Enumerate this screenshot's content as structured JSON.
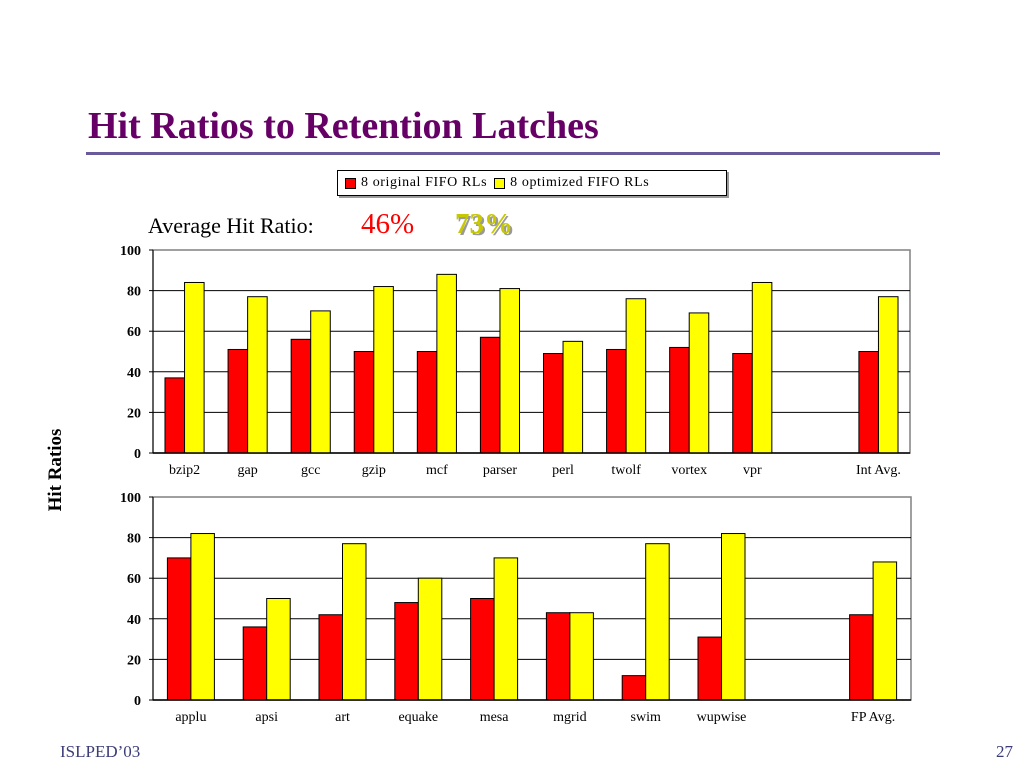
{
  "slide": {
    "title": "Hit Ratios to Retention Latches",
    "avg_label": "Average Hit Ratio:",
    "avg_original": "46%",
    "avg_optimized": "73%",
    "footer_left": "ISLPED’03",
    "footer_right": "27"
  },
  "colors": {
    "title": "#660066",
    "original": "#ff0000",
    "optimized": "#ffff00",
    "avg_original": "#ff0000",
    "avg_optimized": "#c8c800"
  },
  "chart_data": [
    {
      "type": "bar",
      "ylabel": "Hit Ratios",
      "ylim": [
        0,
        100
      ],
      "yticks": [
        0,
        20,
        40,
        60,
        80,
        100
      ],
      "grid": true,
      "legend": "top",
      "categories": [
        "bzip2",
        "gap",
        "gcc",
        "gzip",
        "mcf",
        "parser",
        "perl",
        "twolf",
        "vortex",
        "vpr",
        "",
        "Int Avg."
      ],
      "series": [
        {
          "name": "8 original FIFO RLs",
          "values": [
            37,
            51,
            56,
            50,
            50,
            57,
            49,
            51,
            52,
            49,
            null,
            50
          ]
        },
        {
          "name": "8 optimized FIFO RLs",
          "values": [
            84,
            77,
            70,
            82,
            88,
            81,
            55,
            76,
            69,
            84,
            null,
            77
          ]
        }
      ]
    },
    {
      "type": "bar",
      "ylabel": "Hit Ratios",
      "ylim": [
        0,
        100
      ],
      "yticks": [
        0,
        20,
        40,
        60,
        80,
        100
      ],
      "grid": true,
      "categories": [
        "applu",
        "apsi",
        "art",
        "equake",
        "mesa",
        "mgrid",
        "swim",
        "wupwise",
        "",
        "FP Avg."
      ],
      "series": [
        {
          "name": "8 original FIFO RLs",
          "values": [
            70,
            36,
            42,
            48,
            50,
            43,
            12,
            31,
            null,
            42
          ]
        },
        {
          "name": "8 optimized FIFO RLs",
          "values": [
            82,
            50,
            77,
            60,
            70,
            43,
            77,
            82,
            null,
            68
          ]
        }
      ]
    }
  ]
}
